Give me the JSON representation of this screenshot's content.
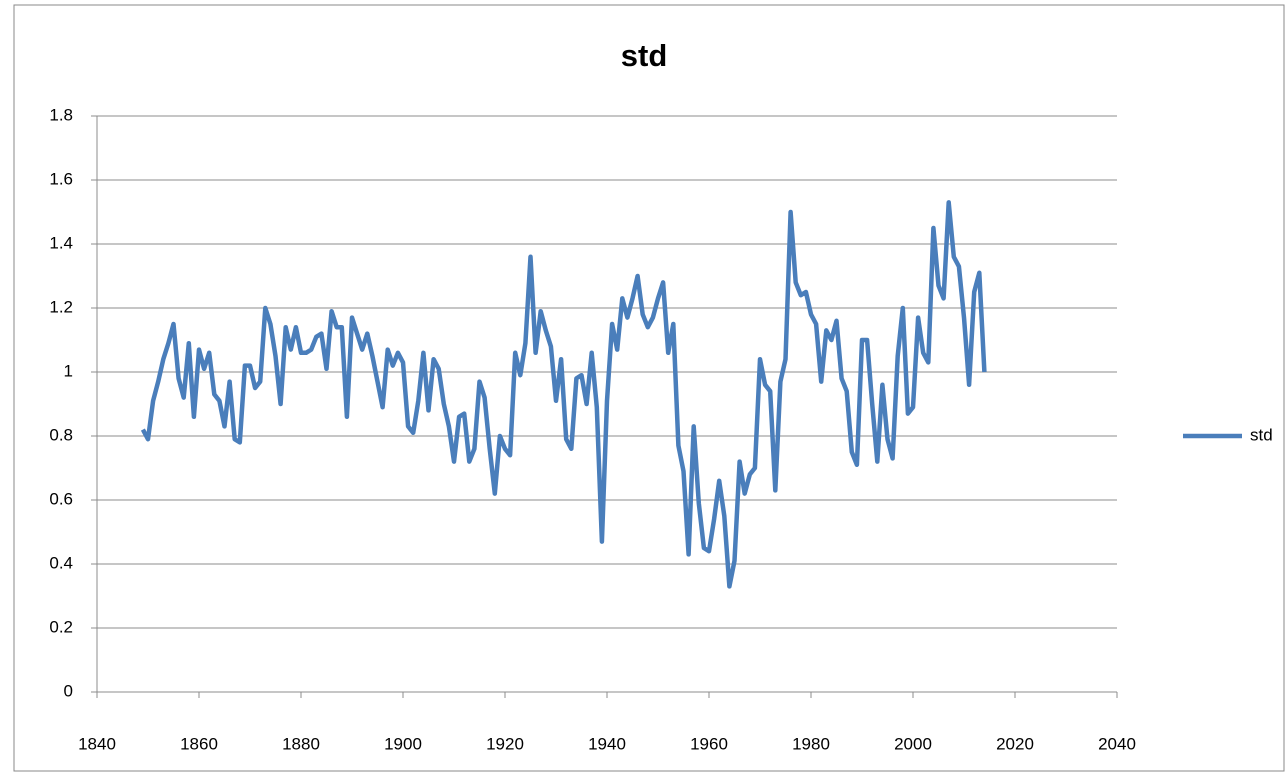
{
  "chart_data": {
    "type": "line",
    "title": "std",
    "x": [
      1849,
      1850,
      1851,
      1852,
      1853,
      1854,
      1855,
      1856,
      1857,
      1858,
      1859,
      1860,
      1861,
      1862,
      1863,
      1864,
      1865,
      1866,
      1867,
      1868,
      1869,
      1870,
      1871,
      1872,
      1873,
      1874,
      1875,
      1876,
      1877,
      1878,
      1879,
      1880,
      1881,
      1882,
      1883,
      1884,
      1885,
      1886,
      1887,
      1888,
      1889,
      1890,
      1891,
      1892,
      1893,
      1894,
      1895,
      1896,
      1897,
      1898,
      1899,
      1900,
      1901,
      1902,
      1903,
      1904,
      1905,
      1906,
      1907,
      1908,
      1909,
      1910,
      1911,
      1912,
      1913,
      1914,
      1915,
      1916,
      1917,
      1918,
      1919,
      1920,
      1921,
      1922,
      1923,
      1924,
      1925,
      1926,
      1927,
      1928,
      1929,
      1930,
      1931,
      1932,
      1933,
      1934,
      1935,
      1936,
      1937,
      1938,
      1939,
      1940,
      1941,
      1942,
      1943,
      1944,
      1945,
      1946,
      1947,
      1948,
      1949,
      1950,
      1951,
      1952,
      1953,
      1954,
      1955,
      1956,
      1957,
      1958,
      1959,
      1960,
      1961,
      1962,
      1963,
      1964,
      1965,
      1966,
      1967,
      1968,
      1969,
      1970,
      1971,
      1972,
      1973,
      1974,
      1975,
      1976,
      1977,
      1978,
      1979,
      1980,
      1981,
      1982,
      1983,
      1984,
      1985,
      1986,
      1987,
      1988,
      1989,
      1990,
      1991,
      1992,
      1993,
      1994,
      1995,
      1996,
      1997,
      1998,
      1999,
      2000,
      2001,
      2002,
      2003,
      2004,
      2005,
      2006,
      2007,
      2008,
      2009,
      2010,
      2011,
      2012,
      2013,
      2014
    ],
    "series": [
      {
        "name": "std",
        "color": "#4a7ebb",
        "values": [
          0.82,
          0.79,
          0.91,
          0.97,
          1.04,
          1.09,
          1.15,
          0.98,
          0.92,
          1.09,
          0.86,
          1.07,
          1.01,
          1.06,
          0.93,
          0.91,
          0.83,
          0.97,
          0.79,
          0.78,
          1.02,
          1.02,
          0.95,
          0.97,
          1.2,
          1.15,
          1.05,
          0.9,
          1.14,
          1.07,
          1.14,
          1.06,
          1.06,
          1.07,
          1.11,
          1.12,
          1.01,
          1.19,
          1.14,
          1.14,
          0.86,
          1.17,
          1.12,
          1.07,
          1.12,
          1.05,
          0.97,
          0.89,
          1.07,
          1.02,
          1.06,
          1.03,
          0.83,
          0.81,
          0.91,
          1.06,
          0.88,
          1.04,
          1.01,
          0.9,
          0.83,
          0.72,
          0.86,
          0.87,
          0.72,
          0.76,
          0.97,
          0.92,
          0.76,
          0.62,
          0.8,
          0.76,
          0.74,
          1.06,
          0.99,
          1.09,
          1.36,
          1.06,
          1.19,
          1.13,
          1.08,
          0.91,
          1.04,
          0.79,
          0.76,
          0.98,
          0.99,
          0.9,
          1.06,
          0.89,
          0.47,
          0.91,
          1.15,
          1.07,
          1.23,
          1.17,
          1.23,
          1.3,
          1.18,
          1.14,
          1.17,
          1.23,
          1.28,
          1.06,
          1.15,
          0.77,
          0.69,
          0.43,
          0.83,
          0.59,
          0.45,
          0.44,
          0.54,
          0.66,
          0.55,
          0.33,
          0.41,
          0.72,
          0.62,
          0.68,
          0.7,
          1.04,
          0.96,
          0.94,
          0.63,
          0.97,
          1.04,
          1.5,
          1.28,
          1.24,
          1.25,
          1.18,
          1.15,
          0.97,
          1.13,
          1.1,
          1.16,
          0.98,
          0.94,
          0.75,
          0.71,
          1.1,
          1.1,
          0.9,
          0.72,
          0.96,
          0.79,
          0.73,
          1.05,
          1.2,
          0.87,
          0.89,
          1.17,
          1.06,
          1.03,
          1.45,
          1.27,
          1.23,
          1.53,
          1.36,
          1.33,
          1.17,
          0.96,
          1.25,
          1.31,
          1.0
        ]
      }
    ],
    "xlim": [
      1840,
      2040
    ],
    "xticks": [
      1840,
      1860,
      1880,
      1900,
      1920,
      1940,
      1960,
      1980,
      2000,
      2020,
      2040
    ],
    "ylim": [
      0,
      1.8
    ],
    "yticks": [
      0,
      0.2,
      0.4,
      0.6,
      0.8,
      1,
      1.2,
      1.4,
      1.6,
      1.8
    ],
    "grid": true,
    "legend": "right"
  }
}
